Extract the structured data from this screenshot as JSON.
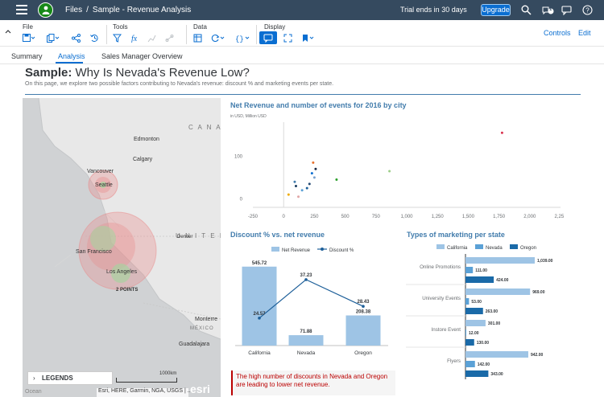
{
  "shell": {
    "breadcrumb_files": "Files",
    "breadcrumb_sep": "/",
    "breadcrumb_story": "Sample - Revenue Analysis",
    "trial_text": "Trial ends in 30 days",
    "upgrade_label": "Upgrade",
    "notification_count": "1"
  },
  "toolbar": {
    "groups": {
      "file": "File",
      "tools": "Tools",
      "data": "Data",
      "display": "Display"
    },
    "controls_label": "Controls",
    "edit_label": "Edit"
  },
  "tabs": [
    {
      "label": "Summary"
    },
    {
      "label": "Analysis"
    },
    {
      "label": "Sales Manager Overview"
    }
  ],
  "page": {
    "title_bold": "Sample:",
    "title_rest": " Why Is Nevada's Revenue Low?",
    "subtitle": "On this page, we explore two possible factors contributing to Nevada's revenue: discount % and marketing events per state."
  },
  "map": {
    "labels": {
      "edmonton": "Edmonton",
      "calgary": "Calgary",
      "canada": "C A N A D",
      "vancouver": "Vancouver",
      "seattle": "Seattle",
      "united_states": "U N I T E D   S",
      "denver": "Denver",
      "san_francisco": "San Francisco",
      "los_angeles": "Los Angeles",
      "points": "2 POINTS",
      "monterrey": "Monterre",
      "mexico": "MÉXICO",
      "guadalajara": "Guadalajara"
    },
    "legends_label": "LEGENDS",
    "scale_label": "1000km",
    "attribution": "Esri, HERE, Garmin, NGA, USGS | ...",
    "ocean_label": "Ocean",
    "esri_logo": "esri"
  },
  "scatter": {
    "title": "Net Revenue and number of events for 2016 by city",
    "unit": "in USD, Million USD",
    "x_ticks": [
      "-250",
      "0",
      "250",
      "500",
      "750",
      "1,000",
      "1,250",
      "1,500",
      "1,750",
      "2,000",
      "2,250"
    ],
    "y_ticks": [
      "100",
      "0"
    ]
  },
  "discount": {
    "title": "Discount % vs. net revenue",
    "legend_bar": "Net Revenue",
    "legend_line": "Discount %",
    "bar_color": "#9ec4e5",
    "line_color": "#1d5f99"
  },
  "marketing": {
    "title": "Types of marketing per state",
    "legend": [
      "California",
      "Nevada",
      "Oregon"
    ],
    "colors": [
      "#9ec4e5",
      "#5ba1d6",
      "#1a6aa8"
    ]
  },
  "note": {
    "text": "The high number of discounts in Nevada and Oregon are leading to lower net revenue."
  },
  "chart_data": [
    {
      "type": "scatter",
      "title": "Net Revenue and number of events for 2016 by city",
      "xlim": [
        -250,
        2250
      ],
      "ylim": [
        -20,
        180
      ],
      "points": [
        {
          "x": 40,
          "y": 10,
          "color": "#f0ab00"
        },
        {
          "x": 90,
          "y": 40,
          "color": "#427cac"
        },
        {
          "x": 100,
          "y": 30,
          "color": "#1a3b5c"
        },
        {
          "x": 120,
          "y": 5,
          "color": "#e1a6a6"
        },
        {
          "x": 150,
          "y": 20,
          "color": "#5ba1d6"
        },
        {
          "x": 190,
          "y": 25,
          "color": "#1d5f99"
        },
        {
          "x": 210,
          "y": 35,
          "color": "#254a73"
        },
        {
          "x": 230,
          "y": 60,
          "color": "#0a6ed1"
        },
        {
          "x": 240,
          "y": 85,
          "color": "#e7722f"
        },
        {
          "x": 250,
          "y": 50,
          "color": "#7ba1cc"
        },
        {
          "x": 260,
          "y": 70,
          "color": "#1a2a47"
        },
        {
          "x": 430,
          "y": 45,
          "color": "#2ca02c"
        },
        {
          "x": 860,
          "y": 65,
          "color": "#9ecf8a"
        },
        {
          "x": 1775,
          "y": 155,
          "color": "#d9334f"
        }
      ]
    },
    {
      "type": "bar",
      "title": "Discount % vs. net revenue",
      "categories": [
        "California",
        "Nevada",
        "Oregon"
      ],
      "series": [
        {
          "name": "Net Revenue",
          "values": [
            545.72,
            71.88,
            208.38
          ]
        },
        {
          "name": "Discount %",
          "values": [
            24.57,
            37.23,
            28.43
          ]
        }
      ]
    },
    {
      "type": "bar",
      "title": "Types of marketing per state",
      "categories": [
        "Online Promotions",
        "University Events",
        "Instore Event",
        "Flyers"
      ],
      "series": [
        {
          "name": "California",
          "values": [
            1039,
            969,
            301,
            942
          ]
        },
        {
          "name": "Nevada",
          "values": [
            111,
            53,
            12,
            142
          ]
        },
        {
          "name": "Oregon",
          "values": [
            424,
            263,
            130,
            343
          ]
        }
      ]
    }
  ]
}
